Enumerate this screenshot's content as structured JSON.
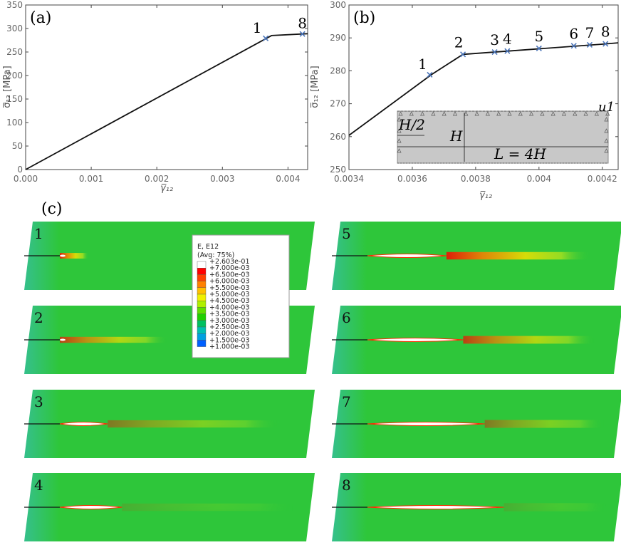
{
  "chart_data": [
    {
      "panel": "(a)",
      "type": "line",
      "xlabel": "γ̅₁₂",
      "ylabel": "σ̅₁₂ [MPa]",
      "xlim": [
        0,
        0.0043
      ],
      "ylim": [
        0,
        350
      ],
      "xticks": [
        "0.000",
        "0.001",
        "0.002",
        "0.003",
        "0.004"
      ],
      "yticks": [
        "0",
        "50",
        "100",
        "150",
        "200",
        "250",
        "300",
        "350"
      ],
      "series": [
        {
          "x": [
            0.0,
            0.00375,
            0.0043
          ],
          "y": [
            0,
            285,
            289
          ]
        }
      ],
      "markers": [
        {
          "label": "1",
          "x": 0.00366,
          "y": 279
        },
        {
          "label": "8",
          "x": 0.00422,
          "y": 288.3
        }
      ],
      "grid": false
    },
    {
      "panel": "(b)",
      "type": "line",
      "xlabel": "γ̅₁₂",
      "ylabel": "σ̅₁₂ [MPa]",
      "xlim": [
        0.0034,
        0.00425
      ],
      "ylim": [
        250,
        300
      ],
      "xticks": [
        "0.0034",
        "0.0036",
        "0.0038",
        "0.004",
        "0.0042"
      ],
      "yticks": [
        "250",
        "260",
        "270",
        "280",
        "290",
        "300"
      ],
      "series": [
        {
          "x": [
            0.0034,
            0.00366,
            0.00376,
            0.0042,
            0.00425
          ],
          "y": [
            260.4,
            278.8,
            285.0,
            288.1,
            288.5
          ]
        }
      ],
      "markers": [
        {
          "label": "1",
          "x": 0.003655,
          "y": 278.8
        },
        {
          "label": "2",
          "x": 0.00376,
          "y": 285.0
        },
        {
          "label": "3",
          "x": 0.00386,
          "y": 285.7
        },
        {
          "label": "4",
          "x": 0.0039,
          "y": 286.0
        },
        {
          "label": "5",
          "x": 0.004,
          "y": 286.8
        },
        {
          "label": "6",
          "x": 0.00411,
          "y": 287.6
        },
        {
          "label": "7",
          "x": 0.00416,
          "y": 287.9
        },
        {
          "label": "8",
          "x": 0.00421,
          "y": 288.2
        }
      ],
      "inset": {
        "h_half": "H/2",
        "h": "H",
        "length": "L = 4H",
        "disp": "u1"
      },
      "grid": false
    }
  ],
  "panel_c": {
    "label": "(c)",
    "legend": {
      "title1": "E, E12",
      "title2": "(Avg: 75%)",
      "levels": [
        "+2.603e-01",
        "+7.000e-03",
        "+6.500e-03",
        "+6.000e-03",
        "+5.500e-03",
        "+5.000e-03",
        "+4.500e-03",
        "+4.000e-03",
        "+3.500e-03",
        "+3.000e-03",
        "+2.500e-03",
        "+2.000e-03",
        "+1.500e-03",
        "+1.000e-03"
      ],
      "colors": [
        "#ffffff",
        "#ff0000",
        "#ff4000",
        "#ff8000",
        "#ffc000",
        "#f0f000",
        "#b0f000",
        "#60e000",
        "#20d000",
        "#00c060",
        "#00c0b0",
        "#00a0e0",
        "#0060ff",
        "#0010ff"
      ]
    },
    "snapshots": [
      {
        "label": "1",
        "crack": 0.0,
        "zone": 0.12,
        "peak": 0.3
      },
      {
        "label": "2",
        "crack": 0.0,
        "zone": 0.45,
        "peak": 0.4
      },
      {
        "label": "3",
        "crack": 0.2,
        "zone": 0.72,
        "peak": 0.7
      },
      {
        "label": "4",
        "crack": 0.26,
        "zone": 0.72,
        "peak": 0.75
      },
      {
        "label": "5",
        "crack": 0.33,
        "zone": 0.6,
        "peak": 0.75
      },
      {
        "label": "6",
        "crack": 0.4,
        "zone": 0.55,
        "peak": 0.8
      },
      {
        "label": "7",
        "crack": 0.49,
        "zone": 0.5,
        "peak": 0.85
      },
      {
        "label": "8",
        "crack": 0.57,
        "zone": 0.43,
        "peak": 0.9
      }
    ]
  }
}
